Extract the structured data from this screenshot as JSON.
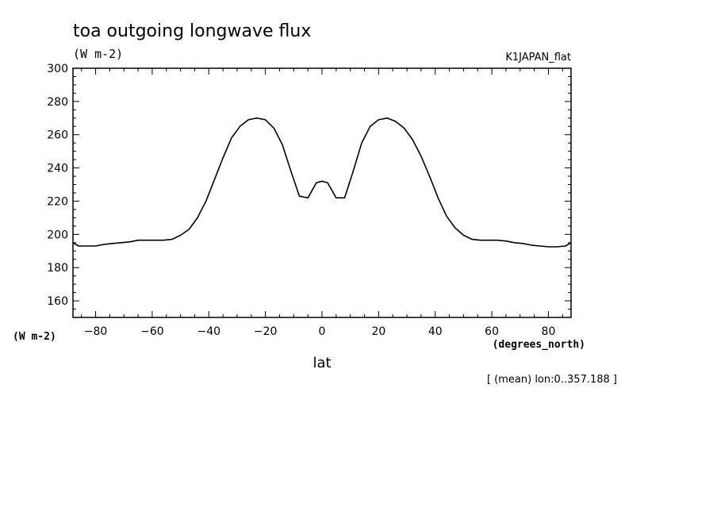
{
  "chart_data": {
    "type": "line",
    "title": "toa outgoing longwave flux",
    "units": "(W m-2)",
    "experiment": "K1JAPAN_flat",
    "ylabel": "(W m-2)",
    "xlabel": "lat",
    "xunits": "(degrees_north)",
    "footnote": "[ (mean) lon:0..357.188 ]",
    "xlim": [
      -88,
      88
    ],
    "ylim": [
      150,
      300
    ],
    "xticks": [
      -80,
      -60,
      -40,
      -20,
      0,
      20,
      40,
      60,
      80
    ],
    "yticks": [
      160,
      180,
      200,
      220,
      240,
      260,
      280,
      300
    ],
    "series": [
      {
        "x": [
          -88,
          -86,
          -83,
          -80,
          -77,
          -74,
          -71,
          -68,
          -65,
          -62,
          -59,
          -56,
          -53,
          -50,
          -47,
          -44,
          -41,
          -38,
          -35,
          -32,
          -29,
          -26,
          -23,
          -20,
          -17,
          -14,
          -11,
          -8,
          -5,
          -2,
          0,
          2,
          5,
          8,
          11,
          14,
          17,
          20,
          23,
          26,
          29,
          32,
          35,
          38,
          41,
          44,
          47,
          50,
          53,
          56,
          59,
          62,
          65,
          68,
          71,
          74,
          77,
          80,
          83,
          86,
          88
        ],
        "y": [
          195,
          193,
          193,
          193,
          194,
          194.5,
          195,
          195.5,
          196.5,
          196.5,
          196.5,
          196.5,
          197,
          199.5,
          203,
          210,
          220,
          233,
          246,
          258,
          265,
          269,
          270,
          269,
          264,
          254,
          238,
          223,
          222,
          231,
          232,
          231,
          222,
          222,
          238,
          255,
          265,
          269,
          270,
          268,
          264,
          257,
          247,
          235,
          222,
          211,
          204,
          199.5,
          197,
          196.5,
          196.5,
          196.5,
          196,
          195,
          194.5,
          193.5,
          193,
          192.5,
          192.5,
          193,
          195
        ]
      }
    ]
  }
}
